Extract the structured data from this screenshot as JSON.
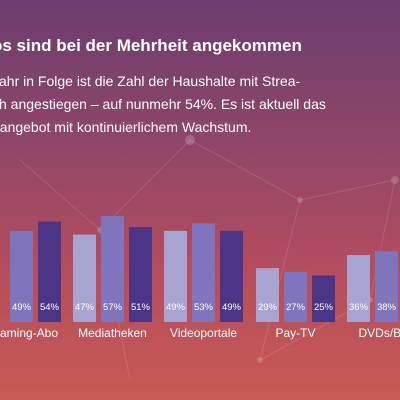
{
  "heading": "os sind bei der Mehrheit angekommen",
  "intro": [
    "Jahr in Folge ist die Zahl der Haushalte mit Strea-",
    "ch angestiegen – auf nunmehr 54%. Es ist aktuell das",
    "dangebot mit kontinuierlichem Wachstum."
  ],
  "colors": {
    "light": "#a8a3d0",
    "mid": "#8074bc",
    "dark": "#4c3587",
    "bg_top": "#6b3d6e",
    "bg_bottom": "#c95a52"
  },
  "chart_data": {
    "type": "bar",
    "categories": [
      "aming-Abo",
      "Mediatheken",
      "Videoportale",
      "Pay-TV",
      "DVDs/Blu-"
    ],
    "series": [
      {
        "values": [
          null,
          47,
          49,
          29,
          36
        ]
      },
      {
        "values": [
          49,
          57,
          53,
          27,
          38
        ]
      },
      {
        "values": [
          54,
          51,
          49,
          25,
          null
        ]
      }
    ],
    "value_labels": [
      [
        "",
        "49%",
        "54%"
      ],
      [
        "47%",
        "57%",
        "51%"
      ],
      [
        "49%",
        "53%",
        "49%"
      ],
      [
        "29%",
        "27%",
        "25%"
      ],
      [
        "36%",
        "38%",
        ""
      ]
    ],
    "ylim": [
      0,
      60
    ]
  }
}
